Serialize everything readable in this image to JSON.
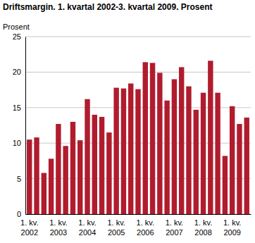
{
  "chart_data": {
    "type": "bar",
    "title": "Driftsmargin. 1. kvartal 2002-3. kvartal 2009. Prosent",
    "y_label": "Prosent",
    "categories": [
      "1. kv. 2002",
      null,
      null,
      null,
      "1. kv. 2003",
      null,
      null,
      null,
      "1. kv. 2004",
      null,
      null,
      null,
      "1. kv. 2005",
      null,
      null,
      null,
      "1. kv. 2006",
      null,
      null,
      null,
      "1. kv. 2007",
      null,
      null,
      null,
      "1. kv. 2008",
      null,
      null,
      null,
      "1. kv. 2009",
      null,
      null
    ],
    "values": [
      10.5,
      10.8,
      5.8,
      7.8,
      12.7,
      9.6,
      13.0,
      10.4,
      16.2,
      14.0,
      13.7,
      11.5,
      17.8,
      17.7,
      18.4,
      17.6,
      21.4,
      21.3,
      19.9,
      16.0,
      19.0,
      20.7,
      18.0,
      14.7,
      17.1,
      21.6,
      17.1,
      8.2,
      15.2,
      12.7,
      13.6
    ],
    "color": "#b01c2e",
    "ylim": [
      0,
      25
    ],
    "yticks": [
      0,
      5,
      10,
      15,
      20,
      25
    ],
    "grid": true
  }
}
